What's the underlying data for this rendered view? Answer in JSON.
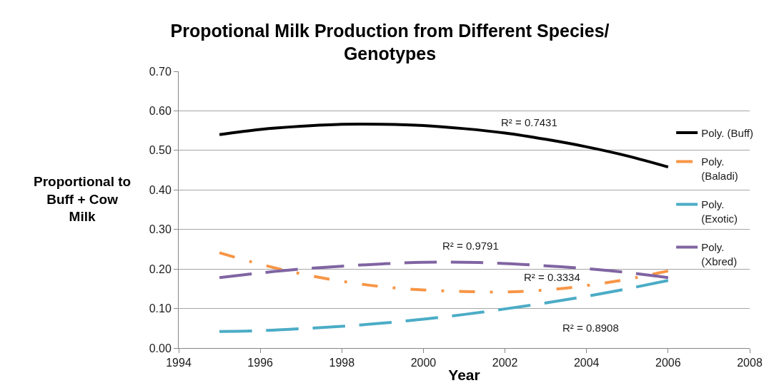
{
  "chart_data": {
    "type": "line",
    "title": "Propotional Milk Production from Different Species/ Genotypes",
    "xlabel": "Year",
    "ylabel": "Proportional to Buff + Cow Milk",
    "x": [
      1995,
      1996,
      1997,
      1998,
      1999,
      2000,
      2001,
      2002,
      2003,
      2004,
      2005,
      2006
    ],
    "series": [
      {
        "name": "Poly. (Buff)",
        "color": "#000000",
        "line_style": "solid",
        "values": [
          0.54,
          0.553,
          0.561,
          0.566,
          0.566,
          0.563,
          0.555,
          0.544,
          0.528,
          0.509,
          0.486,
          0.458
        ]
      },
      {
        "name": "Poly. (Baladi)",
        "color": "#f79646",
        "line_style": "dashdot",
        "values": [
          0.241,
          0.212,
          0.188,
          0.169,
          0.155,
          0.147,
          0.143,
          0.142,
          0.147,
          0.158,
          0.174,
          0.195
        ]
      },
      {
        "name": "Poly. (Exotic)",
        "color": "#4bacc6",
        "line_style": "dashed",
        "values": [
          0.042,
          0.044,
          0.049,
          0.055,
          0.063,
          0.073,
          0.085,
          0.099,
          0.114,
          0.131,
          0.15,
          0.171
        ]
      },
      {
        "name": "Poly. (Xbred)",
        "color": "#8064a2",
        "line_style": "dashed",
        "values": [
          0.178,
          0.19,
          0.2,
          0.207,
          0.213,
          0.217,
          0.217,
          0.214,
          0.208,
          0.201,
          0.191,
          0.178
        ]
      }
    ],
    "xlim": [
      1994,
      2008
    ],
    "xticks": [
      1994,
      1996,
      1998,
      2000,
      2002,
      2004,
      2006,
      2008
    ],
    "ylim": [
      0,
      0.7
    ],
    "yticks": [
      {
        "value": 0,
        "label": "0.00"
      },
      {
        "value": 0.1,
        "label": "0.10"
      },
      {
        "value": 0.2,
        "label": "0.20"
      },
      {
        "value": 0.3,
        "label": "0.30"
      },
      {
        "value": 0.4,
        "label": "0.40"
      },
      {
        "value": 0.5,
        "label": "0.50"
      },
      {
        "value": 0.6,
        "label": "0.60"
      },
      {
        "value": 0.7,
        "label": "0.70"
      }
    ],
    "grid": "y",
    "legend": "right",
    "annotations": [
      "R² = 0.7431",
      "R² = 0.9791",
      "R² = 0.3334",
      "R² = 0.8908"
    ]
  }
}
